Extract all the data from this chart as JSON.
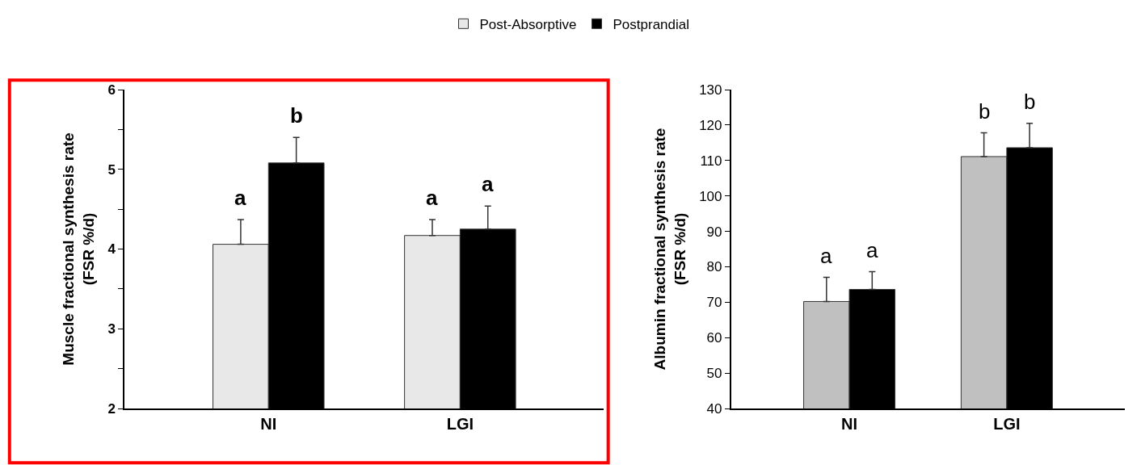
{
  "chart_data": [
    {
      "type": "bar",
      "ylabel": "Muscle fractional synthesis rate\n(FSR %/d)",
      "categories": [
        "NI",
        "LGI"
      ],
      "series": [
        {
          "name": "Post-Absorptive",
          "color": "#e8e8e8",
          "values": [
            4.06,
            4.17
          ],
          "errors": [
            [
              4.06,
              4.37
            ],
            [
              4.17,
              4.37
            ]
          ]
        },
        {
          "name": "Postprandial",
          "color": "#000000",
          "values": [
            5.08,
            4.25
          ],
          "errors": [
            [
              5.08,
              5.4
            ],
            [
              4.25,
              4.54
            ]
          ]
        }
      ],
      "ylim": [
        2,
        6
      ],
      "yticks": [
        2,
        {
          "value": 2.5,
          "label": null
        },
        3,
        {
          "value": 3.5,
          "label": null
        },
        4,
        {
          "value": 4.5,
          "label": null
        },
        5,
        {
          "value": 5.5,
          "label": null
        },
        6
      ],
      "annotations": [
        "a",
        "b",
        "a",
        "a"
      ],
      "legend": "top"
    },
    {
      "type": "bar",
      "ylabel": "Albumin fractional synthesis rate\n(FSR %/d)",
      "categories": [
        "NI",
        "LGI"
      ],
      "series": [
        {
          "color": "#c0c0c0",
          "values": [
            70.2,
            111.1
          ],
          "errors": [
            [
              70.2,
              77
            ],
            [
              111.1,
              117.8
            ]
          ]
        },
        {
          "color": "#000000",
          "values": [
            73.6,
            113.6
          ],
          "errors": [
            [
              73.6,
              78.6
            ],
            [
              113.6,
              120.5
            ]
          ]
        }
      ],
      "ylim": [
        40,
        130
      ],
      "yticks": [
        40,
        50,
        60,
        70,
        80,
        90,
        100,
        110,
        120,
        130
      ],
      "annotations": [
        "a",
        "a",
        "b",
        "b"
      ]
    }
  ]
}
